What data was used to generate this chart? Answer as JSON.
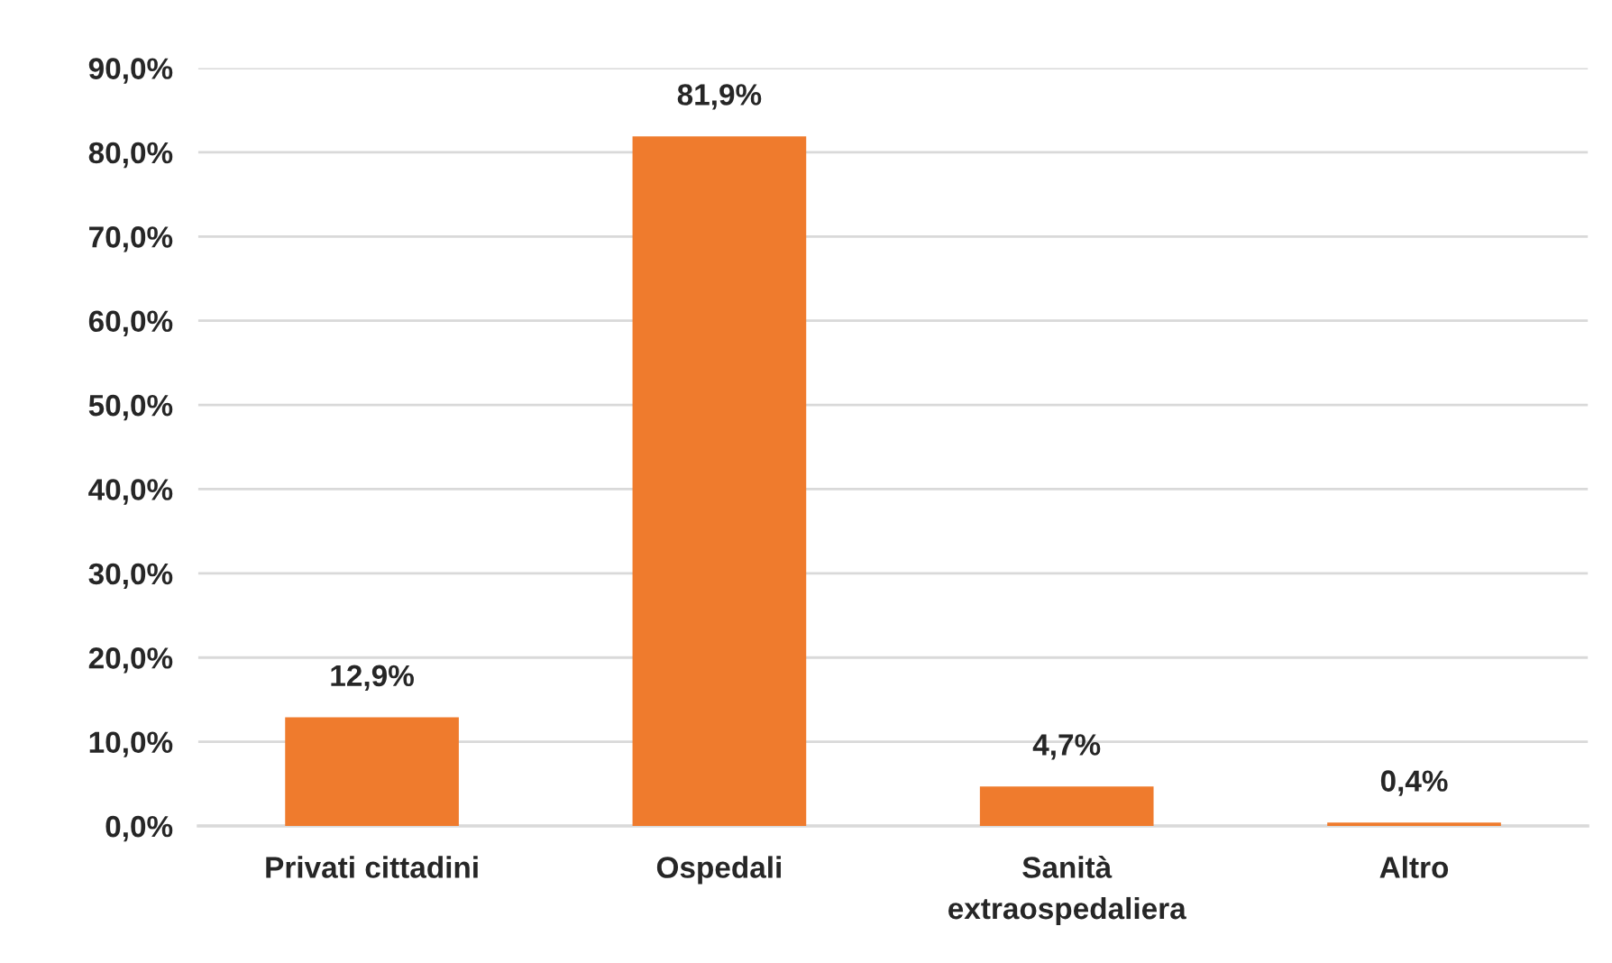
{
  "chart_data": {
    "type": "bar",
    "categories": [
      "Privati cittadini",
      "Ospedali",
      "Sanità\nextraospedaliera",
      "Altro"
    ],
    "values": [
      12.9,
      81.9,
      4.7,
      0.4
    ],
    "value_labels": [
      "12,9%",
      "81,9%",
      "4,7%",
      "0,4%"
    ],
    "color": "#ef7b2d",
    "ylim": [
      0,
      90
    ],
    "yticks": [
      {
        "value": 0,
        "label": "0,0%"
      },
      {
        "value": 10,
        "label": "10,0%"
      },
      {
        "value": 20,
        "label": "20,0%"
      },
      {
        "value": 30,
        "label": "30,0%"
      },
      {
        "value": 40,
        "label": "40,0%"
      },
      {
        "value": 50,
        "label": "50,0%"
      },
      {
        "value": 60,
        "label": "60,0%"
      },
      {
        "value": 70,
        "label": "70,0%"
      },
      {
        "value": 80,
        "label": "80,0%"
      },
      {
        "value": 90,
        "label": "90,0%"
      }
    ],
    "grid": "y"
  }
}
